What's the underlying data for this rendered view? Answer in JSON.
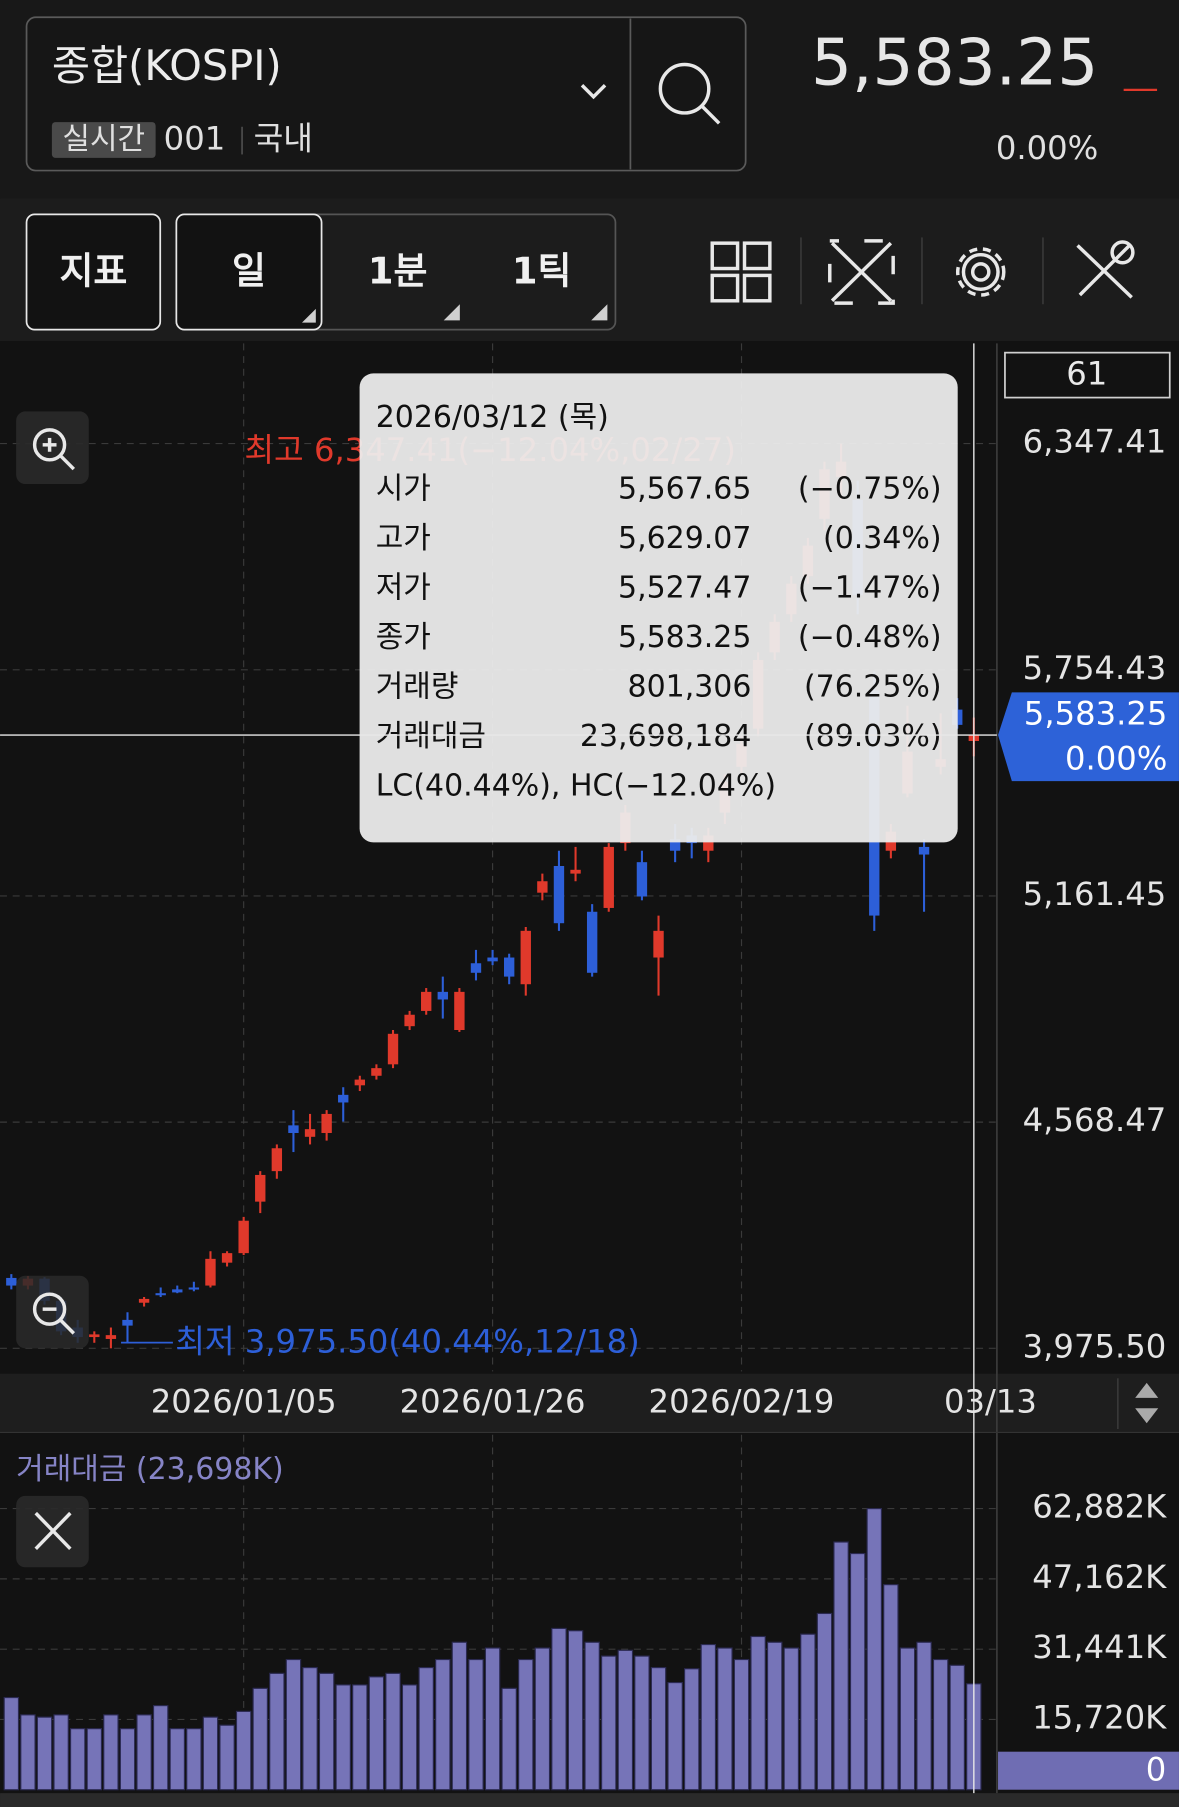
{
  "header": {
    "symbol": "종합(KOSPI)",
    "badge": "실시간",
    "code": "001",
    "market": "국내",
    "price": "5,583.25",
    "change": "0.00%"
  },
  "toolbar": {
    "indicator": "지표",
    "periods": [
      "일",
      "1분",
      "1틱"
    ]
  },
  "tooltip": {
    "date": "2026/03/12 (목)",
    "rows": [
      {
        "label": "시가",
        "value": "5,567.65",
        "change": "(−0.75%)"
      },
      {
        "label": "고가",
        "value": "5,629.07",
        "change": "(0.34%)"
      },
      {
        "label": "저가",
        "value": "5,527.47",
        "change": "(−1.47%)"
      },
      {
        "label": "종가",
        "value": "5,583.25",
        "change": "(−0.48%)"
      },
      {
        "label": "거래량",
        "value": "801,306",
        "change": "(76.25%)"
      },
      {
        "label": "거래대금",
        "value": "23,698,184",
        "change": "(89.03%)"
      }
    ],
    "footer": "LC(40.44%), HC(−12.04%)"
  },
  "chart_data": [
    {
      "type": "candlestick",
      "categories": [
        null,
        null,
        null,
        null,
        null,
        null,
        null,
        null,
        null,
        null,
        null,
        null,
        null,
        null,
        "2026/01/05",
        null,
        null,
        null,
        null,
        null,
        null,
        null,
        null,
        null,
        null,
        null,
        null,
        null,
        null,
        "2026/01/26",
        null,
        null,
        null,
        null,
        null,
        null,
        null,
        null,
        null,
        null,
        null,
        null,
        null,
        null,
        "2026/02/19",
        null,
        null,
        null,
        null,
        null,
        null,
        null,
        null,
        null,
        null,
        null,
        null,
        null,
        null,
        "03/13"
      ],
      "open": [
        4160,
        4140,
        4158,
        4100,
        4030,
        4005,
        4000,
        4050,
        4095,
        4120,
        4130,
        4135,
        4140,
        4200,
        4225,
        4360,
        4440,
        4560,
        4530,
        4540,
        4640,
        4665,
        4690,
        4720,
        4820,
        4860,
        4910,
        4810,
        4985,
        5000,
        5000,
        4930,
        5170,
        5240,
        5220,
        5120,
        5130,
        5300,
        5250,
        5000,
        5310,
        5320,
        5280,
        5380,
        5500,
        5600,
        5800,
        5900,
        6000,
        6150,
        6260,
        6200,
        5700,
        5280,
        5430,
        5290,
        5500,
        5650,
        5567.65,
        null
      ],
      "high": [
        4170,
        4165,
        4162,
        4110,
        4050,
        4020,
        4030,
        4070,
        4110,
        4135,
        4140,
        4150,
        4230,
        4230,
        4320,
        4440,
        4510,
        4600,
        4590,
        4600,
        4660,
        4690,
        4720,
        4810,
        4860,
        4920,
        4950,
        4920,
        5020,
        5020,
        5010,
        5080,
        5220,
        5280,
        5290,
        5140,
        5300,
        5400,
        5280,
        5110,
        5350,
        5340,
        5340,
        5480,
        5580,
        5800,
        5900,
        6000,
        6100,
        6300,
        6347.41,
        6250,
        5750,
        5350,
        5660,
        5310,
        5640,
        5680,
        5629.07,
        null
      ],
      "low": [
        4130,
        4130,
        4090,
        4010,
        3990,
        3990,
        3975.5,
        3990,
        4085,
        4110,
        4120,
        4125,
        4135,
        4190,
        4220,
        4330,
        4420,
        4490,
        4510,
        4520,
        4570,
        4650,
        4680,
        4710,
        4810,
        4850,
        4840,
        4805,
        4940,
        4980,
        4930,
        4900,
        5150,
        5070,
        5200,
        4950,
        5120,
        5280,
        5150,
        4900,
        5250,
        5260,
        5250,
        5350,
        5480,
        5580,
        5780,
        5880,
        5980,
        6120,
        6200,
        5900,
        5070,
        5260,
        5420,
        5120,
        5480,
        5600,
        5527.47,
        null
      ],
      "close": [
        4140,
        4158,
        4100,
        4020,
        4005,
        4012,
        4010,
        4035,
        4105,
        4115,
        4122,
        4130,
        4210,
        4225,
        4310,
        4430,
        4500,
        4540,
        4550,
        4590,
        4620,
        4680,
        4710,
        4800,
        4850,
        4910,
        4890,
        4910,
        4960,
        4990,
        4950,
        5070,
        5200,
        5090,
        5230,
        4960,
        5290,
        5380,
        5160,
        5070,
        5280,
        5300,
        5320,
        5460,
        5560,
        5780,
        5880,
        5980,
        6080,
        6280,
        6300,
        5950,
        5110,
        5330,
        5540,
        5270,
        5520,
        5610,
        5583.25,
        null
      ],
      "up_color": "#e0392b",
      "down_color": "#2d5fd8",
      "ylim": [
        3915,
        6610
      ],
      "yticks": [
        {
          "value": 3975.5,
          "label": "3,975.50"
        },
        {
          "value": 4568.47,
          "label": "4,568.47"
        },
        {
          "value": 5161.45,
          "label": "5,161.45"
        },
        {
          "value": 5754.43,
          "label": "5,754.43"
        },
        {
          "value": 6347.41,
          "label": "6,347.41"
        }
      ],
      "grid": true,
      "visible_count": 61,
      "last_price": {
        "value": 5583.25,
        "label": "5,583.25"
      },
      "last_change": "0.00%",
      "high_annotation": "최고 6,347.41(−12.04%,02/27)",
      "low_annotation": "최저 3,975.50(40.44%,12/18)"
    },
    {
      "type": "bar",
      "legend": "거래대금 (23,698K)",
      "values": [
        20616,
        16750,
        16235,
        16750,
        13658,
        13658,
        16750,
        13658,
        16750,
        18812,
        13658,
        13658,
        16235,
        14431,
        17524,
        22678,
        26028,
        29120,
        27316,
        26028,
        23451,
        23451,
        25255,
        26028,
        23451,
        27316,
        29120,
        32986,
        29120,
        31697,
        22678,
        29120,
        31697,
        36078,
        35563,
        32986,
        29893,
        31182,
        29893,
        27316,
        23966,
        27059,
        32470,
        31697,
        29120,
        34274,
        32986,
        31697,
        34790,
        39428,
        55406,
        52829,
        62882,
        45871,
        31697,
        32986,
        29120,
        27832,
        23698.184,
        null
      ],
      "color": "#7674b8",
      "ylim": [
        0,
        79400
      ],
      "yticks": [
        0,
        {
          "value": 15720,
          "label": "15,720K"
        },
        {
          "value": 31441,
          "label": "31,441K"
        },
        {
          "value": 47162,
          "label": "47,162K"
        },
        {
          "value": 62882,
          "label": "62,882K"
        }
      ],
      "grid": true
    }
  ]
}
